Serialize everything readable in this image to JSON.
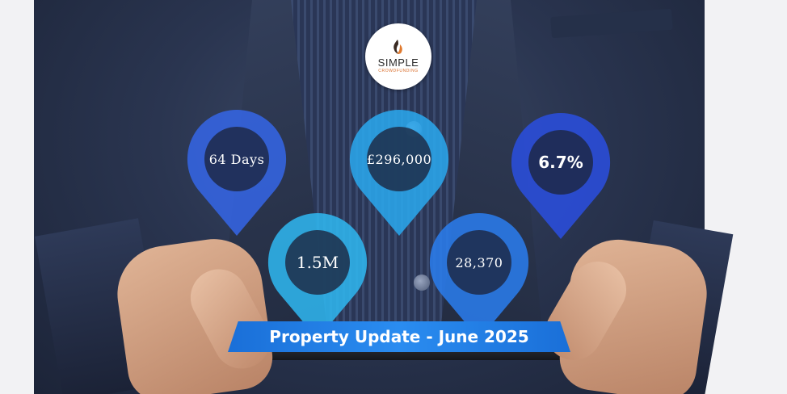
{
  "logo": {
    "word": "SIMPLE",
    "sub": "CROWDFUNDING",
    "colors": {
      "flame_dark": "#3a2a22",
      "flame_orange": "#e07a2e"
    }
  },
  "stats": [
    {
      "id": "days",
      "value": "64 Days",
      "color": "#3566e8"
    },
    {
      "id": "price",
      "value": "£296,000",
      "color": "#2aa9f0"
    },
    {
      "id": "rate",
      "value": "6.7%",
      "color": "#2a4fe0"
    },
    {
      "id": "views",
      "value": "1.5M",
      "color": "#2fb8f2"
    },
    {
      "id": "count",
      "value": "28,370",
      "color": "#2a7ef0"
    }
  ],
  "banner": {
    "text": "Property Update - June 2025",
    "color": "#2a8cf0"
  }
}
